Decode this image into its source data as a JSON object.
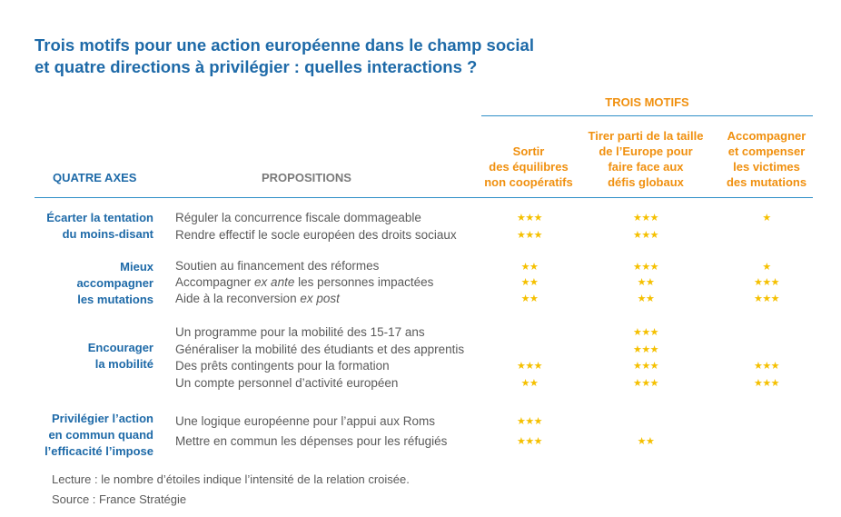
{
  "title": {
    "line1": "Trois motifs pour une action européenne dans le champ social",
    "line2": "et quatre directions à privilégier : quelles interactions ?"
  },
  "motifs_header": "TROIS MOTIFS",
  "columns": {
    "axes": "QUATRE AXES",
    "propositions": "PROPOSITIONS",
    "motif1": [
      "Sortir",
      "des équilibres",
      "non coopératifs"
    ],
    "motif2": [
      "Tirer parti de la taille",
      "de l’Europe pour",
      "faire face aux",
      "défis globaux"
    ],
    "motif3": [
      "Accompagner",
      "et compenser",
      "les victimes",
      "des mutations"
    ]
  },
  "star_color": "#f5c000",
  "groups": [
    {
      "axis": [
        "Écarter la tentation",
        "du moins-disant"
      ],
      "rows": [
        {
          "text": "Réguler la concurrence fiscale dommageable",
          "stars": [
            3,
            3,
            1
          ]
        },
        {
          "text": "Rendre effectif le socle européen des droits sociaux",
          "stars": [
            3,
            3,
            0
          ]
        }
      ]
    },
    {
      "axis": [
        "Mieux",
        "accompagner",
        "les mutations"
      ],
      "rows": [
        {
          "text": "Soutien au financement des réformes",
          "stars": [
            2,
            3,
            1
          ]
        },
        {
          "text_parts": [
            "Accompagner ",
            "ex ante",
            " les personnes impactées"
          ],
          "stars": [
            2,
            2,
            3
          ]
        },
        {
          "text_parts": [
            "Aide à la reconversion ",
            "ex post",
            ""
          ],
          "stars": [
            2,
            2,
            3
          ]
        }
      ]
    },
    {
      "axis": [
        "Encourager",
        "la mobilité"
      ],
      "rows": [
        {
          "text": "Un programme pour la mobilité des 15-17 ans",
          "stars": [
            0,
            3,
            0
          ]
        },
        {
          "text": "Généraliser la mobilité des étudiants et des apprentis",
          "stars": [
            0,
            3,
            0
          ]
        },
        {
          "text": "Des prêts contingents pour la formation",
          "stars": [
            3,
            3,
            3
          ]
        },
        {
          "text": "Un compte personnel d’activité européen",
          "stars": [
            2,
            3,
            3
          ]
        }
      ]
    },
    {
      "axis": [
        "Privilégier l’action",
        "en commun quand",
        "l’efficacité l’impose"
      ],
      "rows": [
        {
          "text": "Une logique européenne pour l’appui aux Roms",
          "stars": [
            3,
            0,
            0
          ]
        },
        {
          "text": "Mettre en commun les dépenses pour les réfugiés",
          "stars": [
            3,
            2,
            0
          ]
        }
      ]
    }
  ],
  "footnote": {
    "lecture": "Lecture : le nombre d’étoiles indique l’intensité de la relation croisée.",
    "source": "Source : France Stratégie"
  }
}
